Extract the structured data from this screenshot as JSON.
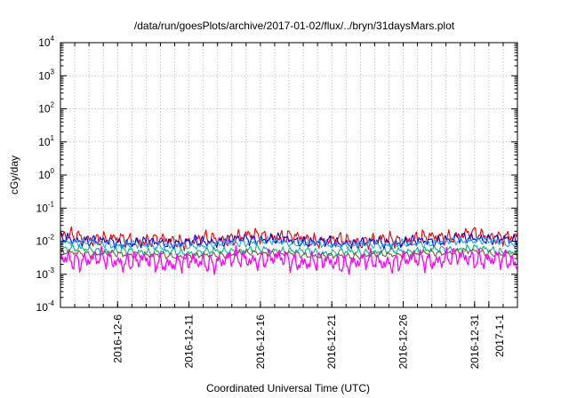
{
  "chart_data": {
    "type": "line",
    "title": "/data/run/goesPlots/archive/2017-01-02/flux/../bryn/31daysMars.plot",
    "xlabel": "Coordinated Universal Time (UTC)",
    "ylabel": "cGy/day",
    "yscale": "log",
    "ylim": [
      0.0001,
      10000
    ],
    "xlim": [
      "2016-12-02",
      "2017-01-03"
    ],
    "y_ticks": [
      {
        "base": "10",
        "exp": "-4"
      },
      {
        "base": "10",
        "exp": "-3"
      },
      {
        "base": "10",
        "exp": "-2"
      },
      {
        "base": "10",
        "exp": "-1"
      },
      {
        "base": "10",
        "exp": "0"
      },
      {
        "base": "10",
        "exp": "1"
      },
      {
        "base": "10",
        "exp": "2"
      },
      {
        "base": "10",
        "exp": "3"
      },
      {
        "base": "10",
        "exp": "4"
      }
    ],
    "x_ticks": [
      "2016-12-6",
      "2016-12-11",
      "2016-12-16",
      "2016-12-21",
      "2016-12-26",
      "2016-12-31",
      "2017-1-1"
    ],
    "grid": true,
    "legend": "none",
    "series": [
      {
        "color": "#ee0000",
        "level": 0.011,
        "x": [
          "2016-12-02",
          "2016-12-06",
          "2016-12-11",
          "2016-12-16",
          "2016-12-21",
          "2016-12-26",
          "2016-12-31",
          "2017-01-03"
        ],
        "y": [
          0.014,
          0.011,
          0.01,
          0.015,
          0.01,
          0.011,
          0.016,
          0.012
        ]
      },
      {
        "color": "#0000ee",
        "level": 0.0095,
        "x": [
          "2016-12-02",
          "2016-12-06",
          "2016-12-11",
          "2016-12-16",
          "2016-12-21",
          "2016-12-26",
          "2016-12-31",
          "2017-01-03"
        ],
        "y": [
          0.012,
          0.009,
          0.009,
          0.012,
          0.009,
          0.009,
          0.013,
          0.01
        ]
      },
      {
        "color": "#22aaee",
        "level": 0.008,
        "x": [
          "2016-12-02",
          "2016-12-06",
          "2016-12-11",
          "2016-12-16",
          "2016-12-21",
          "2016-12-26",
          "2016-12-31",
          "2017-01-03"
        ],
        "y": [
          0.01,
          0.008,
          0.007,
          0.01,
          0.008,
          0.008,
          0.011,
          0.008
        ]
      },
      {
        "color": "#00bb88",
        "level": 0.005,
        "x": [
          "2016-12-02",
          "2016-12-06",
          "2016-12-11",
          "2016-12-16",
          "2016-12-21",
          "2016-12-26",
          "2016-12-31",
          "2017-01-03"
        ],
        "y": [
          0.006,
          0.005,
          0.0045,
          0.0055,
          0.0045,
          0.005,
          0.006,
          0.0045
        ]
      },
      {
        "color": "#7a5a3a",
        "level": 0.004,
        "x": [
          "2016-12-02",
          "2016-12-06",
          "2016-12-11",
          "2016-12-16",
          "2016-12-21",
          "2016-12-26",
          "2016-12-31",
          "2017-01-03"
        ],
        "y": [
          0.0045,
          0.004,
          0.0035,
          0.0045,
          0.0035,
          0.004,
          0.005,
          0.0035
        ]
      },
      {
        "color": "#ff00ff",
        "level": 0.0026,
        "x": [
          "2016-12-02",
          "2016-12-06",
          "2016-12-11",
          "2016-12-16",
          "2016-12-21",
          "2016-12-26",
          "2016-12-31",
          "2017-01-03"
        ],
        "y": [
          0.003,
          0.0026,
          0.0022,
          0.003,
          0.0022,
          0.0025,
          0.0032,
          0.0022
        ]
      }
    ]
  }
}
